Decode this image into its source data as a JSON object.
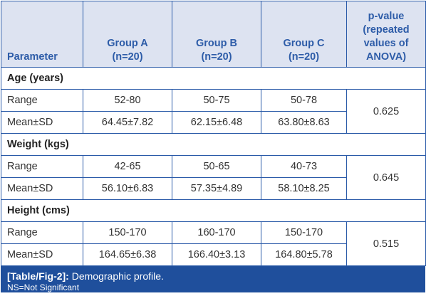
{
  "header": {
    "parameter": "Parameter",
    "group_a": [
      "Group A",
      "(n=20)"
    ],
    "group_b": [
      "Group B",
      "(n=20)"
    ],
    "group_c": [
      "Group C",
      "(n=20)"
    ],
    "pvalue": [
      "p-value",
      "(repeated",
      "values of",
      "ANOVA)"
    ]
  },
  "sections": [
    {
      "title": "Age (years)",
      "rows": [
        {
          "label": "Range",
          "a": "52-80",
          "b": "50-75",
          "c": "50-78"
        },
        {
          "label": "Mean±SD",
          "a": "64.45±7.82",
          "b": "62.15±6.48",
          "c": "63.80±8.63"
        }
      ],
      "p": "0.625"
    },
    {
      "title": "Weight (kgs)",
      "rows": [
        {
          "label": "Range",
          "a": "42-65",
          "b": "50-65",
          "c": "40-73"
        },
        {
          "label": "Mean±SD",
          "a": "56.10±6.83",
          "b": "57.35±4.89",
          "c": "58.10±8.25"
        }
      ],
      "p": "0.645"
    },
    {
      "title": "Height (cms)",
      "rows": [
        {
          "label": "Range",
          "a": "150-170",
          "b": "160-170",
          "c": "150-170"
        },
        {
          "label": "Mean±SD",
          "a": "164.65±6.38",
          "b": "166.40±3.13",
          "c": "164.80±5.78"
        }
      ],
      "p": "0.515"
    }
  ],
  "caption": {
    "tag": "[Table/Fig-2]:",
    "text": " Demographic profile.",
    "note": "NS=Not Significant"
  },
  "colors": {
    "header_bg": "#dde3f1",
    "header_text": "#2d5ca8",
    "border": "#2a5aa8",
    "caption_bg": "#1f4f9c"
  }
}
